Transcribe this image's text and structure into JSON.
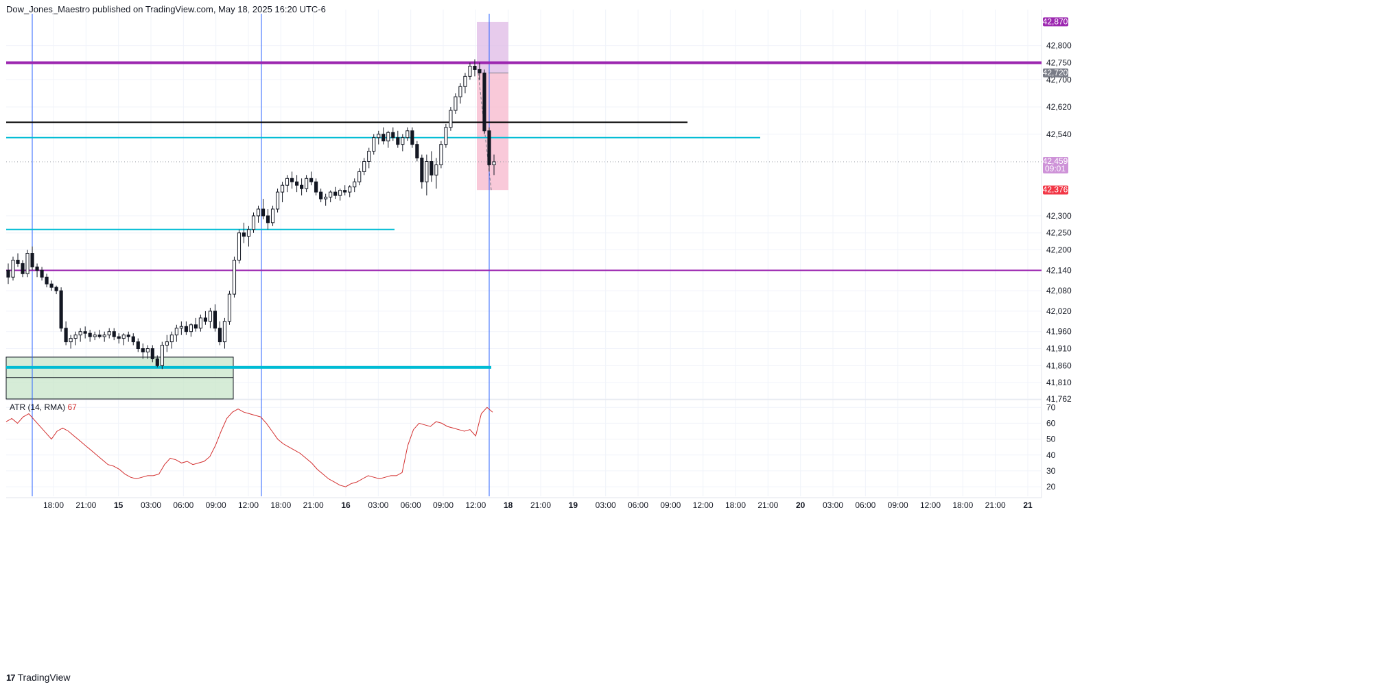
{
  "header": {
    "text": "Dow_Jones_Maestro published on TradingView.com, May 18, 2025 16:20 UTC-6"
  },
  "footer": {
    "logo": "TradingView",
    "logo_mark": "17"
  },
  "colors": {
    "candle": "#131722",
    "purple_line": "#9c27b0",
    "cyan_line": "#00bcd4",
    "black_line": "#000000",
    "blue_vline": "#2962ff",
    "atr_line": "#d32f2f",
    "demand_zone": "#c8e6c9",
    "short_profit": "#f8bbd0",
    "short_stop": "#e1bee7",
    "tag_purple": "#9c27b0",
    "tag_gray": "#787b86",
    "tag_red": "#f23645",
    "tag_last": "#ce93d8"
  },
  "chart_data": {
    "type": "candlestick",
    "title": "",
    "price_axis": {
      "ylim": [
        41762,
        42890
      ],
      "tick_labels": [
        "42,800",
        "42,750",
        "42,700",
        "42,620",
        "42,540",
        "42,300",
        "42,250",
        "42,200",
        "42,140",
        "42,080",
        "42,020",
        "41,960",
        "41,910",
        "41,860",
        "41,810",
        "41,762"
      ],
      "tick_values": [
        42800,
        42750,
        42700,
        42620,
        42540,
        42300,
        42250,
        42200,
        42140,
        42080,
        42020,
        41960,
        41910,
        41860,
        41810,
        41762
      ]
    },
    "price_tags": [
      {
        "label": "42,870",
        "value": 42870,
        "color_key": "tag_purple"
      },
      {
        "label": "42,720",
        "value": 42720,
        "color_key": "tag_gray"
      },
      {
        "label": "42,459",
        "sub": "09:01",
        "value": 42459,
        "color_key": "tag_last"
      },
      {
        "label": "42,376",
        "value": 42376,
        "color_key": "tag_red"
      }
    ],
    "time_axis": {
      "labels": [
        "18:00",
        "21:00",
        "15",
        "03:00",
        "06:00",
        "09:00",
        "12:00",
        "18:00",
        "21:00",
        "16",
        "03:00",
        "06:00",
        "09:00",
        "12:00",
        "18",
        "21:00",
        "19",
        "03:00",
        "06:00",
        "09:00",
        "12:00",
        "18:00",
        "21:00",
        "20",
        "03:00",
        "06:00",
        "09:00",
        "12:00",
        "18:00",
        "21:00",
        "21"
      ],
      "bold": [
        false,
        false,
        true,
        false,
        false,
        false,
        false,
        false,
        false,
        true,
        false,
        false,
        false,
        false,
        true,
        false,
        true,
        false,
        false,
        false,
        false,
        false,
        false,
        true,
        false,
        false,
        false,
        false,
        false,
        false,
        true
      ]
    },
    "horizontal_levels": [
      {
        "value": 42750,
        "color_key": "purple_line",
        "width": 4,
        "extent": "full"
      },
      {
        "value": 42575,
        "color_key": "black_line",
        "width": 2,
        "extent": "partial-1"
      },
      {
        "value": 42530,
        "color_key": "cyan_line",
        "width": 2,
        "extent": "partial-2"
      },
      {
        "value": 42260,
        "color_key": "cyan_line",
        "width": 2,
        "extent": "partial-3"
      },
      {
        "value": 42140,
        "color_key": "purple_line",
        "width": 2,
        "extent": "full"
      },
      {
        "value": 41855,
        "color_key": "cyan_line",
        "width": 4,
        "extent": "partial-4"
      }
    ],
    "demand_zone": {
      "top": 41885,
      "bottom": 41762,
      "mid": 41825
    },
    "short_position": {
      "entry": 42720,
      "stop": 42870,
      "target": 42376
    },
    "ohlc_points": [
      [
        42140,
        42160,
        42100,
        42120
      ],
      [
        42120,
        42180,
        42110,
        42170
      ],
      [
        42170,
        42190,
        42150,
        42160
      ],
      [
        42160,
        42170,
        42120,
        42130
      ],
      [
        42130,
        42200,
        42120,
        42190
      ],
      [
        42190,
        42210,
        42140,
        42150
      ],
      [
        42150,
        42160,
        42120,
        42140
      ],
      [
        42140,
        42150,
        42110,
        42120
      ],
      [
        42120,
        42130,
        42090,
        42100
      ],
      [
        42100,
        42110,
        42080,
        42090
      ],
      [
        42090,
        42095,
        42070,
        42080
      ],
      [
        42080,
        42090,
        41960,
        41970
      ],
      [
        41970,
        41990,
        41920,
        41930
      ],
      [
        41930,
        41950,
        41910,
        41940
      ],
      [
        41940,
        41960,
        41920,
        41950
      ],
      [
        41950,
        41970,
        41930,
        41960
      ],
      [
        41960,
        41975,
        41940,
        41955
      ],
      [
        41955,
        41965,
        41930,
        41945
      ],
      [
        41945,
        41960,
        41935,
        41950
      ],
      [
        41950,
        41965,
        41940,
        41945
      ],
      [
        41945,
        41960,
        41930,
        41950
      ],
      [
        41950,
        41970,
        41940,
        41960
      ],
      [
        41960,
        41970,
        41935,
        41945
      ],
      [
        41945,
        41955,
        41925,
        41940
      ],
      [
        41940,
        41955,
        41920,
        41950
      ],
      [
        41950,
        41960,
        41930,
        41945
      ],
      [
        41945,
        41955,
        41920,
        41930
      ],
      [
        41930,
        41940,
        41900,
        41910
      ],
      [
        41910,
        41925,
        41880,
        41900
      ],
      [
        41900,
        41920,
        41880,
        41910
      ],
      [
        41910,
        41920,
        41870,
        41880
      ],
      [
        41880,
        41890,
        41855,
        41860
      ],
      [
        41860,
        41930,
        41850,
        41920
      ],
      [
        41920,
        41950,
        41900,
        41930
      ],
      [
        41930,
        41960,
        41910,
        41950
      ],
      [
        41950,
        41980,
        41930,
        41970
      ],
      [
        41970,
        41990,
        41950,
        41975
      ],
      [
        41975,
        41990,
        41950,
        41960
      ],
      [
        41960,
        41985,
        41945,
        41980
      ],
      [
        41980,
        42000,
        41960,
        41970
      ],
      [
        41970,
        42010,
        41960,
        42000
      ],
      [
        42000,
        42020,
        41980,
        41990
      ],
      [
        41990,
        42030,
        41970,
        42020
      ],
      [
        42020,
        42040,
        41960,
        41970
      ],
      [
        41970,
        41990,
        41920,
        41930
      ],
      [
        41930,
        42000,
        41910,
        41990
      ],
      [
        41990,
        42080,
        41980,
        42070
      ],
      [
        42070,
        42180,
        42060,
        42170
      ],
      [
        42170,
        42260,
        42160,
        42250
      ],
      [
        42250,
        42280,
        42220,
        42240
      ],
      [
        42240,
        42270,
        42210,
        42260
      ],
      [
        42260,
        42310,
        42250,
        42300
      ],
      [
        42300,
        42330,
        42280,
        42320
      ],
      [
        42320,
        42350,
        42290,
        42300
      ],
      [
        42300,
        42320,
        42260,
        42280
      ],
      [
        42280,
        42330,
        42270,
        42320
      ],
      [
        42320,
        42380,
        42310,
        42370
      ],
      [
        42370,
        42400,
        42340,
        42390
      ],
      [
        42390,
        42420,
        42370,
        42410
      ],
      [
        42410,
        42430,
        42380,
        42400
      ],
      [
        42400,
        42420,
        42370,
        42390
      ],
      [
        42390,
        42410,
        42360,
        42380
      ],
      [
        42380,
        42420,
        42370,
        42410
      ],
      [
        42410,
        42430,
        42390,
        42400
      ],
      [
        42400,
        42410,
        42360,
        42370
      ],
      [
        42370,
        42380,
        42340,
        42350
      ],
      [
        42350,
        42365,
        42330,
        42355
      ],
      [
        42355,
        42375,
        42340,
        42370
      ],
      [
        42370,
        42385,
        42350,
        42360
      ],
      [
        42360,
        42380,
        42345,
        42375
      ],
      [
        42375,
        42390,
        42360,
        42370
      ],
      [
        42370,
        42390,
        42355,
        42385
      ],
      [
        42385,
        42410,
        42370,
        42400
      ],
      [
        42400,
        42440,
        42390,
        42430
      ],
      [
        42430,
        42470,
        42420,
        42460
      ],
      [
        42460,
        42500,
        42440,
        42490
      ],
      [
        42490,
        42540,
        42480,
        42530
      ],
      [
        42530,
        42550,
        42510,
        42540
      ],
      [
        42540,
        42560,
        42510,
        42520
      ],
      [
        42520,
        42550,
        42500,
        42545
      ],
      [
        42545,
        42560,
        42520,
        42530
      ],
      [
        42530,
        42550,
        42500,
        42510
      ],
      [
        42510,
        42540,
        42490,
        42530
      ],
      [
        42530,
        42560,
        42520,
        42550
      ],
      [
        42550,
        42560,
        42500,
        42510
      ],
      [
        42510,
        42520,
        42460,
        42470
      ],
      [
        42470,
        42480,
        42380,
        42400
      ],
      [
        42400,
        42480,
        42360,
        42460
      ],
      [
        42460,
        42490,
        42400,
        42420
      ],
      [
        42420,
        42470,
        42380,
        42450
      ],
      [
        42450,
        42520,
        42440,
        42510
      ],
      [
        42510,
        42570,
        42500,
        42560
      ],
      [
        42560,
        42620,
        42550,
        42610
      ],
      [
        42610,
        42660,
        42600,
        42650
      ],
      [
        42650,
        42690,
        42630,
        42680
      ],
      [
        42680,
        42720,
        42660,
        42710
      ],
      [
        42710,
        42750,
        42700,
        42740
      ],
      [
        42740,
        42760,
        42710,
        42730
      ],
      [
        42730,
        42750,
        42700,
        42720
      ],
      [
        42720,
        42730,
        42540,
        42550
      ],
      [
        42550,
        42560,
        42430,
        42450
      ],
      [
        42450,
        42480,
        42420,
        42459
      ]
    ],
    "series": [
      {
        "name": "ATR (14, RMA)",
        "last_value": "67",
        "y_ticks": [
          70,
          60,
          50,
          40,
          30,
          20
        ],
        "ylim": [
          14,
          74
        ],
        "values": [
          61,
          63,
          60,
          64,
          66,
          62,
          58,
          54,
          50,
          55,
          57,
          55,
          52,
          49,
          46,
          43,
          40,
          37,
          34,
          33,
          31,
          28,
          26,
          25,
          26,
          27,
          27,
          28,
          34,
          38,
          37,
          35,
          36,
          34,
          35,
          36,
          39,
          46,
          55,
          63,
          67,
          69,
          67,
          66,
          65,
          64,
          60,
          55,
          50,
          47,
          45,
          43,
          41,
          38,
          35,
          31,
          28,
          25,
          23,
          21,
          20,
          22,
          23,
          25,
          27,
          26,
          25,
          26,
          27,
          27,
          29,
          46,
          56,
          60,
          59,
          58,
          61,
          60,
          58,
          57,
          56,
          55,
          56,
          52,
          66,
          70,
          67
        ]
      }
    ]
  }
}
